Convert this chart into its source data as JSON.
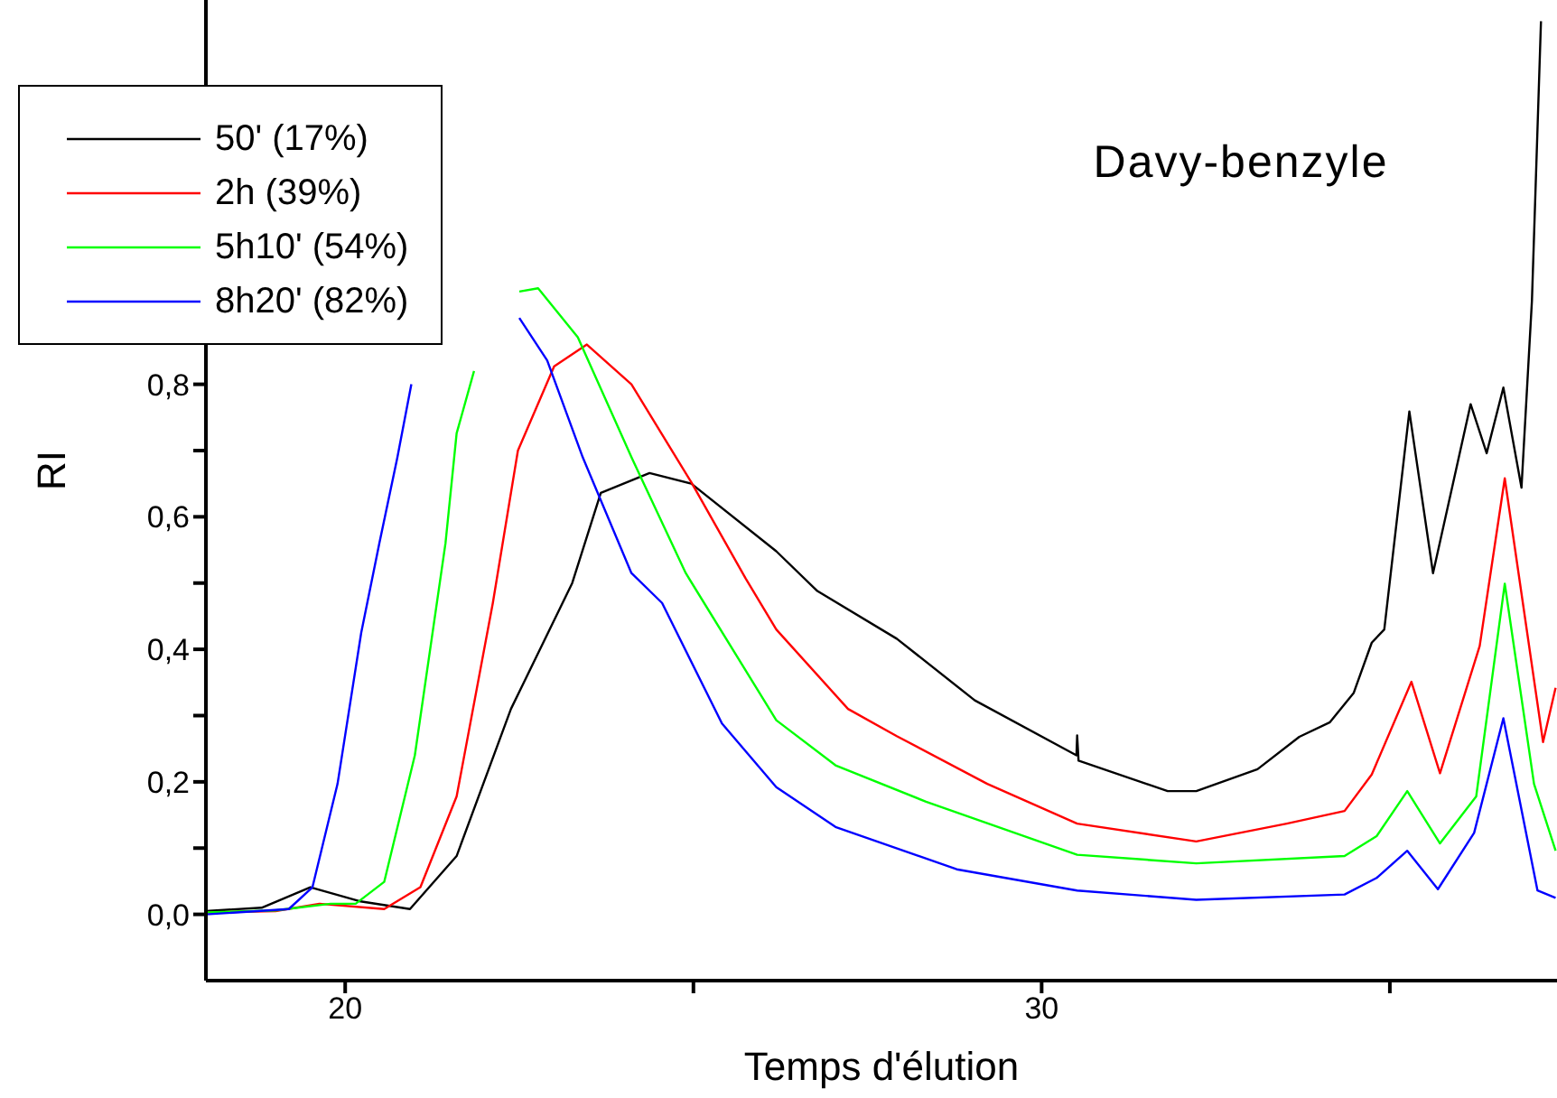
{
  "chart_data": {
    "type": "line",
    "xlabel": "Temps d'élution",
    "ylabel": "RI",
    "annotations": [
      "Davy-benzyle"
    ],
    "legend": "top left",
    "xlim": [
      18,
      37.4
    ],
    "xticks": [
      20,
      {
        "value": 25,
        "label": null
      },
      30,
      {
        "value": 35,
        "label": null
      }
    ],
    "ylim": [
      -0.1,
      1.38
    ],
    "yticks": [
      {
        "value": 0,
        "label": "0,0"
      },
      {
        "value": 0.1,
        "label": null
      },
      {
        "value": 0.2,
        "label": "0,2"
      },
      {
        "value": 0.3,
        "label": null
      },
      {
        "value": 0.4,
        "label": "0,4"
      },
      {
        "value": 0.5,
        "label": null
      },
      {
        "value": 0.6,
        "label": "0,6"
      },
      {
        "value": 0.7,
        "label": null
      },
      {
        "value": 0.8,
        "label": "0,8"
      }
    ],
    "series": [
      {
        "name": "50' (17%)",
        "color": "#000000",
        "x": [
          18,
          18.8,
          19.5,
          20.2,
          20.93,
          21.6,
          22.38,
          23.26,
          23.67,
          24.37,
          24.97,
          26.19,
          26.78,
          27.92,
          29.04,
          30.5,
          30.51,
          30.53,
          31.81,
          32.22,
          33.1,
          33.7,
          34.14,
          34.48,
          34.74,
          34.92,
          35.28,
          35.62,
          36.16,
          36.39,
          36.63,
          36.89,
          37.04,
          37.17
        ],
        "values": [
          0.005,
          0.01,
          0.041,
          0.02,
          0.008,
          0.088,
          0.31,
          0.5,
          0.636,
          0.666,
          0.65,
          0.548,
          0.488,
          0.416,
          0.323,
          0.24,
          0.27,
          0.232,
          0.186,
          0.186,
          0.219,
          0.268,
          0.29,
          0.334,
          0.41,
          0.43,
          0.759,
          0.515,
          0.77,
          0.696,
          0.795,
          0.644,
          0.926,
          1.348
        ]
      },
      {
        "name": "2h (39%)",
        "color": "#ff0000",
        "x": [
          18,
          19,
          19.63,
          20.56,
          21.08,
          21.6,
          22.12,
          22.48,
          23,
          23.47,
          24.11,
          24.97,
          25.75,
          26.19,
          27.22,
          27.92,
          29.22,
          30.51,
          32.22,
          33.52,
          34.35,
          34.74,
          35.31,
          35.72,
          36.29,
          36.65,
          37.2,
          37.38
        ],
        "values": [
          0.003,
          0.005,
          0.016,
          0.008,
          0.041,
          0.178,
          0.47,
          0.7,
          0.827,
          0.86,
          0.8,
          0.652,
          0.507,
          0.43,
          0.31,
          0.269,
          0.197,
          0.137,
          0.11,
          0.137,
          0.156,
          0.211,
          0.351,
          0.213,
          0.405,
          0.658,
          0.26,
          0.342
        ]
      },
      {
        "name": "5h10' (54%)",
        "color": "#00ff00",
        "x": [
          18,
          19,
          19.79,
          20.15,
          20.56,
          21,
          21.44,
          21.6,
          21.85,
          22.1,
          22.3,
          22.5,
          22.77,
          23.34,
          24.11,
          24.89,
          26.19,
          27.04,
          28.34,
          30.51,
          32.22,
          34.35,
          34.81,
          35.25,
          35.72,
          36.24,
          36.65,
          37.07,
          37.38
        ],
        "values": [
          0.003,
          0.006,
          0.016,
          0.016,
          0.049,
          0.24,
          0.56,
          0.726,
          0.82,
          null,
          null,
          0.94,
          0.945,
          0.871,
          0.69,
          0.515,
          0.293,
          0.225,
          0.17,
          0.09,
          0.077,
          0.088,
          0.118,
          0.186,
          0.107,
          0.178,
          0.499,
          0.197,
          0.096
        ]
      },
      {
        "name": "8h20' (82%)",
        "color": "#0000ff",
        "x": [
          18,
          19.19,
          19.53,
          19.89,
          20.23,
          20.49,
          20.75,
          20.95,
          21.5,
          22,
          22.5,
          22.9,
          23.41,
          24.11,
          24.55,
          25.41,
          26.19,
          27.04,
          28.78,
          30.51,
          32.22,
          34.35,
          34.81,
          35.25,
          35.69,
          36.21,
          36.63,
          37.12,
          37.38
        ],
        "values": [
          0,
          0.008,
          0.041,
          0.197,
          0.425,
          0.56,
          0.69,
          0.8,
          null,
          null,
          0.9,
          0.836,
          0.69,
          0.515,
          0.47,
          0.288,
          0.192,
          0.132,
          0.068,
          0.036,
          0.022,
          0.03,
          0.055,
          0.096,
          0.038,
          0.123,
          0.296,
          0.036,
          0.025
        ]
      }
    ]
  }
}
